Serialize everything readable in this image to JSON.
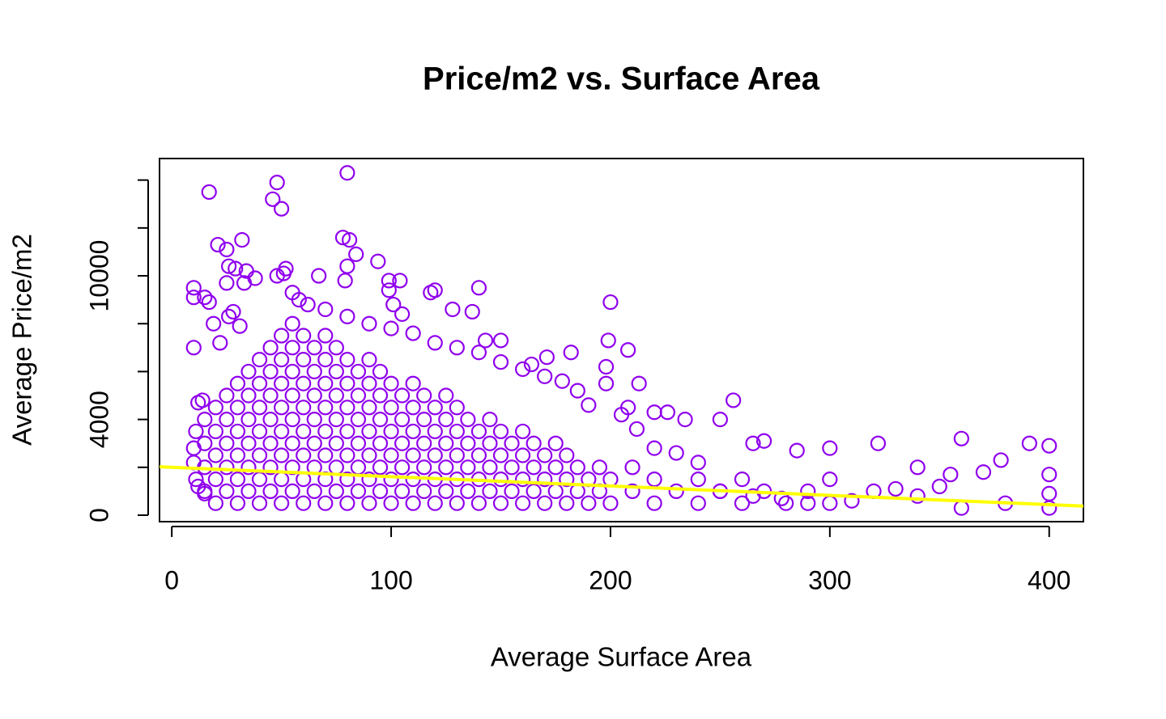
{
  "chart_data": {
    "type": "scatter",
    "title": "Price/m2 vs. Surface Area",
    "x_label": "Average Surface Area",
    "y_label": "Average Price/m2",
    "color": "#9000ee",
    "xlim": [
      -5.6,
      415.6
    ],
    "xticks": [
      0,
      100,
      200,
      300,
      400
    ],
    "ylim": [
      -270,
      14900
    ],
    "yticks": [
      0,
      4000,
      10000
    ],
    "y_minor_ticks": [
      2000,
      6000,
      8000,
      12000,
      14000
    ],
    "regression_line": {
      "intercept": 2000,
      "slope": -3.9,
      "color": "#ffff00"
    },
    "x": [
      15,
      15,
      15,
      15,
      20,
      20,
      20,
      20,
      20,
      25,
      25,
      25,
      25,
      25,
      30,
      30,
      30,
      30,
      30,
      30,
      35,
      35,
      35,
      35,
      35,
      35,
      40,
      40,
      40,
      40,
      40,
      40,
      40,
      45,
      45,
      45,
      45,
      45,
      45,
      45,
      50,
      50,
      50,
      50,
      50,
      50,
      50,
      50,
      55,
      55,
      55,
      55,
      55,
      55,
      55,
      55,
      60,
      60,
      60,
      60,
      60,
      60,
      60,
      60,
      65,
      65,
      65,
      65,
      65,
      65,
      65,
      70,
      70,
      70,
      70,
      70,
      70,
      70,
      70,
      75,
      75,
      75,
      75,
      75,
      75,
      75,
      80,
      80,
      80,
      80,
      80,
      80,
      80,
      85,
      85,
      85,
      85,
      85,
      85,
      90,
      90,
      90,
      90,
      90,
      90,
      90,
      95,
      95,
      95,
      95,
      95,
      95,
      100,
      100,
      100,
      100,
      100,
      100,
      105,
      105,
      105,
      105,
      105,
      110,
      110,
      110,
      110,
      110,
      110,
      115,
      115,
      115,
      115,
      115,
      120,
      120,
      120,
      120,
      120,
      125,
      125,
      125,
      125,
      125,
      130,
      130,
      130,
      130,
      130,
      135,
      135,
      135,
      135,
      140,
      140,
      140,
      140,
      145,
      145,
      145,
      145,
      150,
      150,
      150,
      150,
      155,
      155,
      155,
      160,
      160,
      160,
      160,
      165,
      165,
      165,
      170,
      170,
      170,
      175,
      175,
      175,
      180,
      180,
      180,
      185,
      185,
      190,
      190,
      195,
      195,
      200,
      200,
      210,
      210,
      220,
      220,
      230,
      240,
      240,
      250,
      260,
      260,
      270,
      280,
      290,
      300,
      300,
      320,
      340,
      350,
      17,
      48,
      46,
      50,
      80,
      21,
      25,
      32,
      78,
      81,
      84,
      94,
      80,
      26,
      29,
      34,
      38,
      25,
      33,
      10,
      10,
      17,
      15,
      52,
      51,
      48,
      67,
      79,
      99,
      99,
      104,
      118,
      120,
      140,
      101,
      105,
      128,
      137,
      200,
      199,
      208,
      198,
      182,
      171,
      164,
      143,
      150,
      10,
      19,
      26,
      28,
      31,
      22,
      256,
      250,
      234,
      220,
      226,
      208,
      198,
      213,
      360,
      391,
      400,
      322,
      300,
      285,
      270,
      265,
      378,
      340,
      355,
      370,
      380,
      360,
      400,
      400,
      400,
      330,
      310,
      290,
      278,
      265,
      250,
      240,
      230,
      220,
      212,
      205,
      190,
      185,
      178,
      170,
      160,
      150,
      140,
      130,
      120,
      110,
      100,
      90,
      80,
      70,
      62,
      58,
      55,
      12,
      14,
      11,
      10,
      10,
      11,
      12,
      15
    ],
    "values": [
      1000,
      2000,
      3000,
      4000,
      500,
      1500,
      2500,
      3500,
      4500,
      1000,
      2000,
      3000,
      4000,
      5000,
      500,
      1500,
      2500,
      3500,
      4500,
      5500,
      1000,
      2000,
      3000,
      4000,
      5000,
      6000,
      500,
      1500,
      2500,
      3500,
      4500,
      5500,
      6500,
      1000,
      2000,
      3000,
      4000,
      5000,
      6000,
      7000,
      500,
      1500,
      2500,
      3500,
      4500,
      5500,
      6500,
      7500,
      1000,
      2000,
      3000,
      4000,
      5000,
      6000,
      7000,
      8000,
      500,
      1500,
      2500,
      3500,
      4500,
      5500,
      6500,
      7500,
      1000,
      2000,
      3000,
      4000,
      5000,
      6000,
      7000,
      500,
      1500,
      2500,
      3500,
      4500,
      5500,
      6500,
      7500,
      1000,
      2000,
      3000,
      4000,
      5000,
      6000,
      7000,
      500,
      1500,
      2500,
      3500,
      4500,
      5500,
      6500,
      1000,
      2000,
      3000,
      4000,
      5000,
      6000,
      500,
      1500,
      2500,
      3500,
      4500,
      5500,
      6500,
      1000,
      2000,
      3000,
      4000,
      5000,
      6000,
      500,
      1500,
      2500,
      3500,
      4500,
      5500,
      1000,
      2000,
      3000,
      4000,
      5000,
      500,
      1500,
      2500,
      3500,
      4500,
      5500,
      1000,
      2000,
      3000,
      4000,
      5000,
      500,
      1500,
      2500,
      3500,
      4500,
      1000,
      2000,
      3000,
      4000,
      5000,
      500,
      1500,
      2500,
      3500,
      4500,
      1000,
      2000,
      3000,
      4000,
      500,
      1500,
      2500,
      3500,
      1000,
      2000,
      3000,
      4000,
      500,
      1500,
      2500,
      3500,
      1000,
      2000,
      3000,
      500,
      1500,
      2500,
      3500,
      1000,
      2000,
      3000,
      500,
      1500,
      2500,
      1000,
      2000,
      3000,
      500,
      1500,
      2500,
      1000,
      2000,
      500,
      1500,
      1000,
      2000,
      500,
      1500,
      1000,
      2000,
      500,
      1500,
      1000,
      500,
      1500,
      1000,
      500,
      1500,
      1000,
      500,
      1000,
      500,
      1500,
      1000,
      800,
      1200,
      13500,
      13900,
      13200,
      12800,
      14300,
      11300,
      11100,
      11500,
      11600,
      11500,
      10900,
      10600,
      10400,
      10400,
      10300,
      10200,
      9900,
      9700,
      9700,
      9500,
      9100,
      8900,
      9100,
      10300,
      10100,
      10000,
      10000,
      9800,
      9800,
      9400,
      9800,
      9300,
      9400,
      9500,
      8800,
      8400,
      8600,
      8500,
      8900,
      7300,
      6900,
      6200,
      6800,
      6600,
      6300,
      7300,
      7300,
      7000,
      8000,
      8300,
      8500,
      7900,
      7200,
      4800,
      4000,
      4000,
      4300,
      4300,
      4500,
      5500,
      5500,
      3200,
      3000,
      2900,
      3000,
      2800,
      2700,
      3100,
      3000,
      2300,
      2000,
      1700,
      1800,
      500,
      300,
      300,
      900,
      1700,
      1100,
      600,
      500,
      700,
      800,
      1000,
      2200,
      2600,
      2800,
      3600,
      4200,
      4600,
      5200,
      5600,
      5800,
      6100,
      6400,
      6800,
      7000,
      7200,
      7600,
      7800,
      8000,
      8300,
      8600,
      8800,
      9000,
      9300,
      4700,
      4800,
      3500,
      2800,
      2200,
      1500,
      1200,
      900
    ]
  }
}
